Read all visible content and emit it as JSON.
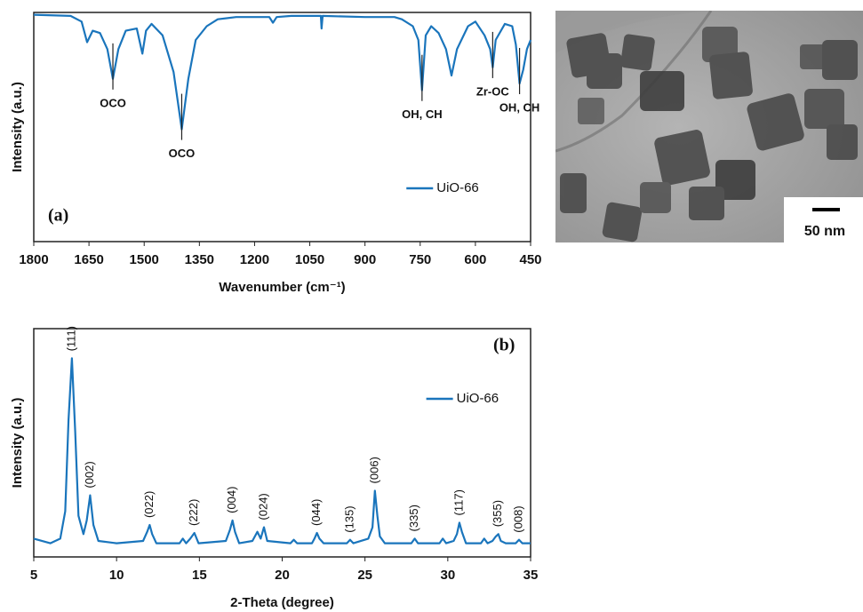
{
  "chart_data": [
    {
      "type": "line",
      "panel_label": "(a)",
      "x_label": "Wavenumber (cm⁻¹)",
      "y_label": "Intensity (a.u.)",
      "xlim": [
        1800,
        450
      ],
      "ylim": [
        0,
        100
      ],
      "xticks": [
        1800,
        1650,
        1500,
        1350,
        1200,
        1050,
        900,
        750,
        600,
        450
      ],
      "legend": "lower right",
      "series": [
        {
          "name": "UiO-66",
          "color": "#1a75bc",
          "x": [
            1800,
            1700,
            1670,
            1655,
            1640,
            1620,
            1600,
            1585,
            1570,
            1550,
            1520,
            1505,
            1495,
            1480,
            1450,
            1420,
            1398,
            1380,
            1360,
            1330,
            1300,
            1250,
            1160,
            1150,
            1140,
            1100,
            1020,
            1018,
            1015,
            900,
            820,
            800,
            770,
            755,
            745,
            735,
            720,
            700,
            680,
            665,
            650,
            620,
            600,
            575,
            560,
            553,
            545,
            520,
            500,
            490,
            480,
            470,
            460,
            450
          ],
          "values": [
            99,
            98.5,
            96,
            87,
            92,
            91,
            84,
            71,
            84,
            92,
            93,
            82,
            92,
            95,
            90,
            74,
            49,
            71,
            88,
            94,
            97,
            98,
            98,
            95.5,
            98,
            98.5,
            98.5,
            93,
            98.5,
            98,
            98,
            97,
            94,
            88,
            66,
            90,
            94,
            91,
            84,
            72.5,
            84,
            94,
            96,
            90,
            84,
            76,
            88,
            95,
            94,
            86,
            69,
            75,
            84,
            88
          ]
        }
      ],
      "annotations": [
        {
          "text": "OCO",
          "x": 1585
        },
        {
          "text": "OCO",
          "x": 1398
        },
        {
          "text": "OH, CH",
          "x": 745
        },
        {
          "text": "Zr-OC",
          "x": 553
        },
        {
          "text": "OH, CH",
          "x": 480
        }
      ]
    },
    {
      "type": "line",
      "panel_label": "(b)",
      "x_label": "2-Theta (degree)",
      "y_label": "Intensity (a.u.)",
      "xlim": [
        5,
        35
      ],
      "ylim": [
        0,
        100
      ],
      "xticks": [
        5,
        10,
        15,
        20,
        25,
        30,
        35
      ],
      "legend": "upper right",
      "series": [
        {
          "name": "UiO-66",
          "color": "#1a75bc",
          "x": [
            5,
            6,
            6.6,
            6.9,
            7.1,
            7.3,
            7.5,
            7.7,
            8.0,
            8.2,
            8.4,
            8.6,
            8.9,
            10,
            11.6,
            11.85,
            12.0,
            12.15,
            12.4,
            13.8,
            14.0,
            14.2,
            14.45,
            14.7,
            14.95,
            16.6,
            16.85,
            17.0,
            17.15,
            17.4,
            18.2,
            18.5,
            18.7,
            18.9,
            19.1,
            20.5,
            20.7,
            20.9,
            21.8,
            21.95,
            22.1,
            22.25,
            22.5,
            23.9,
            24.1,
            24.3,
            25.2,
            25.45,
            25.6,
            25.75,
            25.9,
            26.2,
            27.8,
            28.0,
            28.2,
            29.5,
            29.7,
            29.9,
            30.35,
            30.55,
            30.7,
            30.85,
            31.1,
            32.0,
            32.2,
            32.4,
            32.7,
            32.9,
            33.05,
            33.2,
            33.5,
            34.1,
            34.3,
            34.5,
            35
          ],
          "values": [
            8,
            6,
            8,
            20,
            60,
            87,
            55,
            18,
            10,
            16,
            27,
            14,
            7,
            6,
            7,
            11,
            14,
            10,
            6,
            6,
            8,
            6,
            8,
            10.5,
            6,
            7,
            12,
            16,
            11,
            6,
            7,
            11,
            8,
            13,
            7,
            6,
            7.5,
            6,
            6,
            8,
            10.5,
            8,
            6,
            6,
            7.5,
            6,
            8,
            13,
            29,
            18,
            9,
            6,
            6,
            8,
            6,
            6,
            8,
            6,
            7,
            10,
            15,
            11,
            6,
            6,
            8,
            6,
            7,
            9,
            10,
            7,
            6,
            6,
            7.5,
            6,
            6
          ]
        }
      ],
      "peak_labels": [
        {
          "text": "(111)",
          "x": 7.3
        },
        {
          "text": "(002)",
          "x": 8.4
        },
        {
          "text": "(022)",
          "x": 12.0
        },
        {
          "text": "(222)",
          "x": 14.7
        },
        {
          "text": "(004)",
          "x": 17.0
        },
        {
          "text": "(024)",
          "x": 18.9
        },
        {
          "text": "(044)",
          "x": 22.1
        },
        {
          "text": "(135)",
          "x": 24.1
        },
        {
          "text": "(006)",
          "x": 25.6
        },
        {
          "text": "(335)",
          "x": 28.0
        },
        {
          "text": "(117)",
          "x": 30.7
        },
        {
          "text": "(355)",
          "x": 33.05
        },
        {
          "text": "(008)",
          "x": 34.3
        }
      ]
    }
  ],
  "image": {
    "scale_bar": "50 nm"
  }
}
